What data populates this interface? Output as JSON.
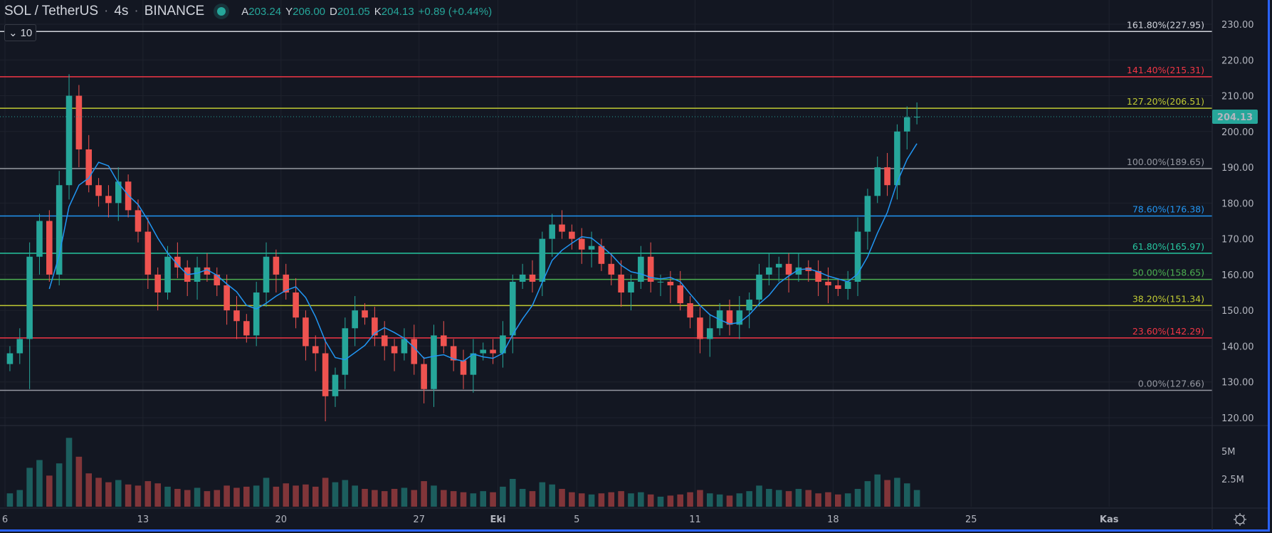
{
  "header": {
    "symbol": "SOL / TetherUS",
    "interval": "4s",
    "exchange": "BINANCE",
    "market_status": "open",
    "ohlc": [
      {
        "key": "A",
        "value": "203.24"
      },
      {
        "key": "Y",
        "value": "206.00"
      },
      {
        "key": "D",
        "value": "201.05"
      },
      {
        "key": "K",
        "value": "204.13"
      }
    ],
    "change": "+0.89 (+0.44%)",
    "indicator_toggle": "10"
  },
  "price_axis": {
    "ticks": [
      "230.00",
      "220.00",
      "210.00",
      "200.00",
      "190.00",
      "180.00",
      "170.00",
      "160.00",
      "150.00",
      "140.00",
      "130.00",
      "120.00"
    ],
    "current_price": "204.13",
    "current_price_color": "#26a69a"
  },
  "volume_axis": {
    "ticks": [
      "5M",
      "2.5M"
    ]
  },
  "time_axis": {
    "ticks": [
      {
        "label": "6",
        "day": 0
      },
      {
        "label": "13",
        "day": 7
      },
      {
        "label": "20",
        "day": 14
      },
      {
        "label": "27",
        "day": 21
      },
      {
        "label": "Eki",
        "day": 25
      },
      {
        "label": "5",
        "day": 29
      },
      {
        "label": "11",
        "day": 35
      },
      {
        "label": "18",
        "day": 42
      },
      {
        "label": "25",
        "day": 49
      },
      {
        "label": "Kas",
        "day": 56
      }
    ],
    "settings_icon": "gear-icon"
  },
  "fib_levels": [
    {
      "label": "161.80%(227.95)",
      "price": 227.95,
      "color": "#d1d4dc"
    },
    {
      "label": "141.40%(215.31)",
      "price": 215.31,
      "color": "#f23645"
    },
    {
      "label": "127.20%(206.51)",
      "price": 206.51,
      "color": "#c0ca33"
    },
    {
      "label": "100.00%(189.65)",
      "price": 189.65,
      "color": "#9598a1"
    },
    {
      "label": "78.60%(176.38)",
      "price": 176.38,
      "color": "#2196f3"
    },
    {
      "label": "61.80%(165.97)",
      "price": 165.97,
      "color": "#26c6a0"
    },
    {
      "label": "50.00%(158.65)",
      "price": 158.65,
      "color": "#4caf50"
    },
    {
      "label": "38.20%(151.34)",
      "price": 151.34,
      "color": "#c0ca33"
    },
    {
      "label": "23.60%(142.29)",
      "price": 142.29,
      "color": "#f23645"
    },
    {
      "label": "0.00%(127.66)",
      "price": 127.66,
      "color": "#9598a1"
    }
  ],
  "chart_data": {
    "type": "candlestick",
    "candle_step_days": 0.5,
    "start_day_label": "6",
    "closes": [
      138,
      142,
      165,
      175,
      160,
      185,
      210,
      195,
      185,
      182,
      180,
      186,
      178,
      172,
      160,
      155,
      165,
      162,
      158,
      162,
      160,
      157,
      150,
      147,
      143,
      155,
      165,
      160,
      155,
      148,
      140,
      138,
      126,
      132,
      145,
      150,
      148,
      143,
      140,
      138,
      142,
      135,
      128,
      143,
      140,
      136,
      132,
      138,
      139,
      138,
      143,
      158,
      160,
      158,
      170,
      174,
      172,
      170,
      167,
      168,
      163,
      160,
      155,
      158,
      165,
      158,
      158,
      157,
      152,
      148,
      142,
      145,
      150,
      146,
      150,
      153,
      160,
      162,
      163,
      160,
      162,
      161,
      158,
      157,
      156,
      158,
      172,
      182,
      190,
      185,
      200,
      204,
      204.13
    ],
    "volumes_m": [
      1.2,
      1.5,
      3.5,
      4.2,
      2.8,
      3.9,
      6.2,
      4.5,
      3.0,
      2.6,
      2.2,
      2.4,
      2.0,
      1.9,
      2.3,
      2.1,
      1.8,
      1.6,
      1.5,
      1.7,
      1.4,
      1.5,
      1.9,
      1.7,
      1.8,
      1.9,
      2.6,
      1.8,
      2.1,
      1.9,
      2.0,
      1.8,
      2.6,
      2.2,
      2.4,
      1.9,
      1.6,
      1.5,
      1.4,
      1.6,
      1.7,
      1.5,
      2.3,
      1.9,
      1.5,
      1.4,
      1.3,
      1.2,
      1.4,
      1.3,
      1.8,
      2.5,
      1.6,
      1.4,
      2.2,
      2.0,
      1.6,
      1.3,
      1.2,
      1.1,
      1.2,
      1.3,
      1.4,
      1.2,
      1.3,
      1.1,
      0.9,
      1.0,
      1.1,
      1.3,
      1.5,
      1.2,
      1.1,
      1.0,
      1.2,
      1.4,
      1.9,
      1.6,
      1.5,
      1.4,
      1.6,
      1.5,
      1.2,
      1.3,
      1.1,
      1.2,
      1.6,
      2.3,
      2.9,
      2.4,
      2.6,
      2.1,
      1.5
    ],
    "moving_average": {
      "length": 10,
      "color": "#2196f3"
    },
    "up_color": "#26a69a",
    "down_color": "#ef5350",
    "ylim": [
      120,
      230
    ]
  }
}
